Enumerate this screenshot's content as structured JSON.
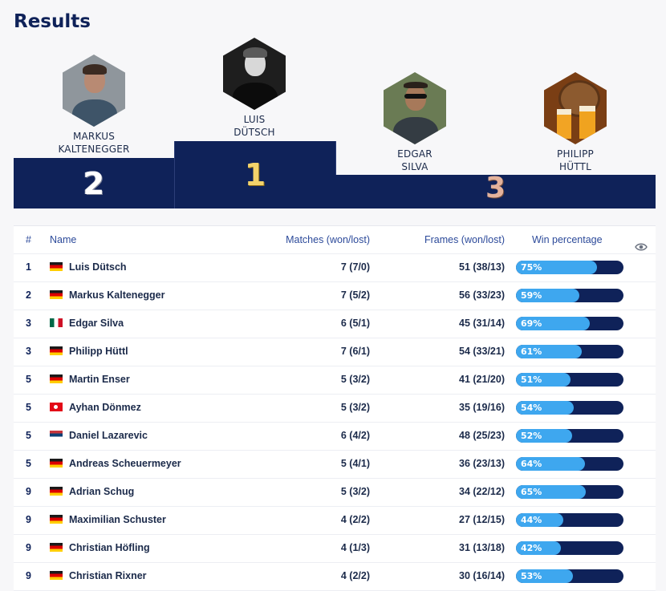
{
  "page": {
    "title": "Results"
  },
  "podium": {
    "first": {
      "rank": "1",
      "first_name": "LUIS",
      "last_name": "DÜTSCH"
    },
    "second": {
      "rank": "2",
      "first_name": "MARKUS",
      "last_name": "KALTENEGGER"
    },
    "third": [
      {
        "rank": "3",
        "first_name": "EDGAR",
        "last_name": "SILVA"
      },
      {
        "rank": "3",
        "first_name": "PHILIPP",
        "last_name": "HÜTTL"
      }
    ]
  },
  "table": {
    "headers": {
      "rank": "#",
      "name": "Name",
      "matches": "Matches (won/lost)",
      "frames": "Frames (won/lost)",
      "win": "Win percentage",
      "visibility_icon": "eye-icon"
    },
    "colors": {
      "bar_track": "#0f2259",
      "bar_fill": "#3ea7ef"
    },
    "rows": [
      {
        "rank": "1",
        "flag": "de",
        "name": "Luis Dütsch",
        "matches": "7 (7/0)",
        "frames": "51 (38/13)",
        "win_label": "75%",
        "win_value": 75
      },
      {
        "rank": "2",
        "flag": "de",
        "name": "Markus Kaltenegger",
        "matches": "7 (5/2)",
        "frames": "56 (33/23)",
        "win_label": "59%",
        "win_value": 59
      },
      {
        "rank": "3",
        "flag": "mx",
        "name": "Edgar Silva",
        "matches": "6 (5/1)",
        "frames": "45 (31/14)",
        "win_label": "69%",
        "win_value": 69
      },
      {
        "rank": "3",
        "flag": "de",
        "name": "Philipp Hüttl",
        "matches": "7 (6/1)",
        "frames": "54 (33/21)",
        "win_label": "61%",
        "win_value": 61
      },
      {
        "rank": "5",
        "flag": "de",
        "name": "Martin Enser",
        "matches": "5 (3/2)",
        "frames": "41 (21/20)",
        "win_label": "51%",
        "win_value": 51
      },
      {
        "rank": "5",
        "flag": "tr",
        "name": "Ayhan Dönmez",
        "matches": "5 (3/2)",
        "frames": "35 (19/16)",
        "win_label": "54%",
        "win_value": 54
      },
      {
        "rank": "5",
        "flag": "rs",
        "name": "Daniel Lazarevic",
        "matches": "6 (4/2)",
        "frames": "48 (25/23)",
        "win_label": "52%",
        "win_value": 52
      },
      {
        "rank": "5",
        "flag": "de",
        "name": "Andreas Scheuermeyer",
        "matches": "5 (4/1)",
        "frames": "36 (23/13)",
        "win_label": "64%",
        "win_value": 64
      },
      {
        "rank": "9",
        "flag": "de",
        "name": "Adrian Schug",
        "matches": "5 (3/2)",
        "frames": "34 (22/12)",
        "win_label": "65%",
        "win_value": 65
      },
      {
        "rank": "9",
        "flag": "de",
        "name": "Maximilian Schuster",
        "matches": "4 (2/2)",
        "frames": "27 (12/15)",
        "win_label": "44%",
        "win_value": 44
      },
      {
        "rank": "9",
        "flag": "de",
        "name": "Christian Höfling",
        "matches": "4 (1/3)",
        "frames": "31 (13/18)",
        "win_label": "42%",
        "win_value": 42
      },
      {
        "rank": "9",
        "flag": "de",
        "name": "Christian Rixner",
        "matches": "4 (2/2)",
        "frames": "30 (16/14)",
        "win_label": "53%",
        "win_value": 53
      }
    ]
  }
}
